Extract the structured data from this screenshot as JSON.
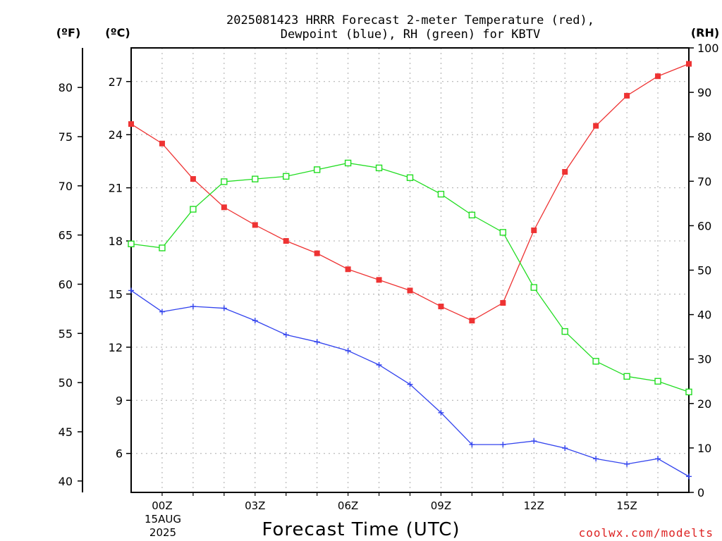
{
  "chart_data": {
    "type": "line",
    "title_lines": [
      "2025081423 HRRR Forecast 2-meter Temperature (red),",
      "Dewpoint (blue), RH (green) for KBTV"
    ],
    "xlabel": "Forecast Time (UTC)",
    "x_hours": [
      -1,
      0,
      1,
      2,
      3,
      4,
      5,
      6,
      7,
      8,
      9,
      10,
      11,
      12,
      13,
      14,
      15,
      16,
      17
    ],
    "x_ticks": [
      {
        "hour": 0,
        "label": "00Z"
      },
      {
        "hour": 3,
        "label": "03Z"
      },
      {
        "hour": 6,
        "label": "06Z"
      },
      {
        "hour": 9,
        "label": "09Z"
      },
      {
        "hour": 12,
        "label": "12Z"
      },
      {
        "hour": 15,
        "label": "15Z"
      }
    ],
    "date_lines": [
      "15AUG",
      "2025"
    ],
    "xlim": [
      -1,
      17
    ],
    "axes": {
      "f": {
        "label": "(ºF)",
        "ticks": [
          40,
          45,
          50,
          55,
          60,
          65,
          70,
          75,
          80
        ]
      },
      "c": {
        "label": "(ºC)",
        "ticks": [
          6,
          9,
          12,
          15,
          18,
          21,
          24,
          27
        ],
        "ylim": [
          3.8,
          28.9
        ]
      },
      "rh": {
        "label": "(RH)",
        "ticks": [
          0,
          10,
          20,
          30,
          40,
          50,
          60,
          70,
          80,
          90,
          100
        ],
        "ylim": [
          0,
          100
        ]
      }
    },
    "grid": true,
    "series": [
      {
        "name": "Temperature",
        "axis": "c",
        "color": "#ee3333",
        "marker": "filled-square",
        "values": [
          24.6,
          23.5,
          21.5,
          19.9,
          18.9,
          18.0,
          17.3,
          16.4,
          15.8,
          15.2,
          14.3,
          13.5,
          14.5,
          18.6,
          21.9,
          24.5,
          26.2,
          27.3,
          28.0
        ]
      },
      {
        "name": "Dewpoint",
        "axis": "c",
        "color": "#3344ee",
        "marker": "plus",
        "values": [
          15.2,
          14.0,
          14.3,
          14.2,
          13.5,
          12.7,
          12.3,
          11.8,
          11.0,
          9.9,
          8.3,
          6.5,
          6.5,
          6.7,
          6.3,
          5.7,
          5.4,
          5.7,
          4.7
        ]
      },
      {
        "name": "RH",
        "axis": "rh",
        "color": "#22dd22",
        "marker": "open-square",
        "values": [
          55.9,
          55.0,
          63.7,
          69.9,
          70.5,
          71.1,
          72.6,
          74.1,
          73.0,
          70.8,
          67.1,
          62.4,
          58.5,
          46.1,
          36.2,
          29.5,
          26.1,
          25.0,
          22.6
        ]
      }
    ]
  },
  "credit": "coolwx.com/modelts"
}
